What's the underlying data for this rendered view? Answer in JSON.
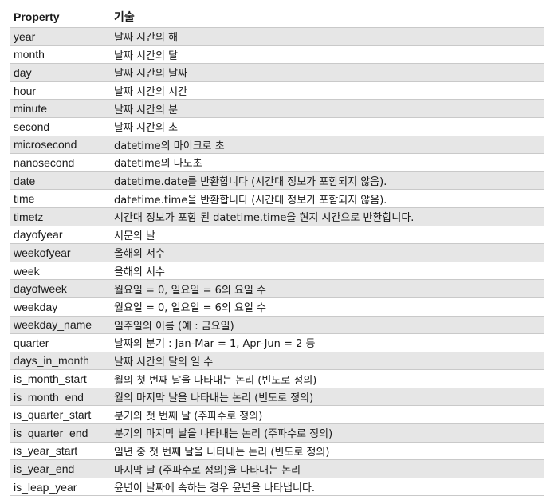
{
  "header": {
    "property": "Property",
    "description": "기술"
  },
  "rows": [
    {
      "property": "year",
      "description": "날짜 시간의 해"
    },
    {
      "property": "month",
      "description": "날짜 시간의 달"
    },
    {
      "property": "day",
      "description": "날짜 시간의 날짜"
    },
    {
      "property": "hour",
      "description": "날짜 시간의 시간"
    },
    {
      "property": "minute",
      "description": "날짜 시간의 분"
    },
    {
      "property": "second",
      "description": "날짜 시간의 초"
    },
    {
      "property": "microsecond",
      "description": "datetime의 마이크로 초"
    },
    {
      "property": "nanosecond",
      "description": "datetime의 나노초"
    },
    {
      "property": "date",
      "description": "datetime.date를 반환합니다 (시간대 정보가 포함되지 않음)."
    },
    {
      "property": "time",
      "description": "datetime.time을 반환합니다 (시간대 정보가 포함되지 않음)."
    },
    {
      "property": "timetz",
      "description": "시간대 정보가 포함 된 datetime.time을 현지 시간으로 반환합니다."
    },
    {
      "property": "dayofyear",
      "description": "서문의 날"
    },
    {
      "property": "weekofyear",
      "description": "올해의 서수"
    },
    {
      "property": "week",
      "description": "올해의 서수"
    },
    {
      "property": "dayofweek",
      "description": "월요일 = 0, 일요일 = 6의 요일 수"
    },
    {
      "property": "weekday",
      "description": "월요일 = 0, 일요일 = 6의 요일 수"
    },
    {
      "property": "weekday_name",
      "description": "일주일의 이름 (예 : 금요일)"
    },
    {
      "property": "quarter",
      "description": "날짜의 분기 : Jan-Mar = 1, Apr-Jun = 2 등"
    },
    {
      "property": "days_in_month",
      "description": "날짜 시간의 달의 일 수"
    },
    {
      "property": "is_month_start",
      "description": "월의 첫 번째 날을 나타내는 논리 (빈도로 정의)"
    },
    {
      "property": "is_month_end",
      "description": "월의 마지막 날을 나타내는 논리 (빈도로 정의)"
    },
    {
      "property": "is_quarter_start",
      "description": "분기의 첫 번째 날 (주파수로 정의)"
    },
    {
      "property": "is_quarter_end",
      "description": "분기의 마지막 날을 나타내는 논리 (주파수로 정의)"
    },
    {
      "property": "is_year_start",
      "description": "일년 중 첫 번째 날을 나타내는 논리 (빈도로 정의)"
    },
    {
      "property": "is_year_end",
      "description": "마지막 날 (주파수로 정의)을 나타내는 논리"
    },
    {
      "property": "is_leap_year",
      "description": "윤년이 날짜에 속하는 경우 윤년을 나타냅니다."
    }
  ]
}
